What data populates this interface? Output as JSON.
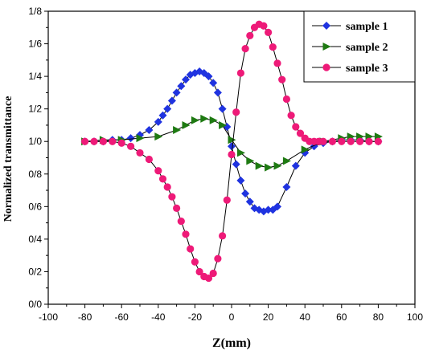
{
  "chart_data": {
    "type": "line",
    "xlabel": "Z(mm)",
    "ylabel": "Normalized transmittance",
    "xlim": [
      -100,
      100
    ],
    "ylim": [
      0,
      1.8
    ],
    "xticks": [
      -100,
      -80,
      -60,
      -40,
      -20,
      0,
      20,
      40,
      60,
      80,
      100
    ],
    "xtick_labels": [
      "-100",
      "-80",
      "-60",
      "-40",
      "-20",
      "0",
      "20",
      "40",
      "60",
      "80",
      "100"
    ],
    "yticks": [
      0,
      0.2,
      0.4,
      0.6,
      0.8,
      1.0,
      1.2,
      1.4,
      1.6,
      1.8
    ],
    "ytick_labels": [
      "0/0",
      "0/2",
      "0/4",
      "0/6",
      "0/8",
      "1/0",
      "1/2",
      "1/4",
      "1/6",
      "1/8"
    ],
    "grid": false,
    "legend_position": "top-right",
    "series": [
      {
        "name": "sample 1",
        "color": "#1f33e0",
        "marker": "diamond",
        "x": [
          -80,
          -75,
          -70,
          -65,
          -60,
          -55,
          -50,
          -45,
          -40,
          -37.5,
          -35,
          -32.5,
          -30,
          -27.5,
          -25,
          -22.5,
          -20,
          -17.5,
          -15,
          -12.5,
          -10,
          -7.5,
          -5,
          -2.5,
          0,
          2.5,
          5,
          7.5,
          10,
          12.5,
          15,
          17.5,
          20,
          22.5,
          25,
          30,
          35,
          40,
          45,
          50,
          55,
          60,
          65,
          70,
          75,
          80
        ],
        "values": [
          1.0,
          1.0,
          1.0,
          1.01,
          1.01,
          1.02,
          1.04,
          1.07,
          1.12,
          1.16,
          1.2,
          1.25,
          1.3,
          1.34,
          1.38,
          1.41,
          1.42,
          1.43,
          1.42,
          1.4,
          1.36,
          1.3,
          1.2,
          1.09,
          0.97,
          0.86,
          0.76,
          0.68,
          0.63,
          0.59,
          0.58,
          0.57,
          0.58,
          0.58,
          0.6,
          0.72,
          0.85,
          0.93,
          0.97,
          0.99,
          1.0,
          1.01,
          1.01,
          1.01,
          1.0,
          1.0
        ]
      },
      {
        "name": "sample 2",
        "color": "#1e7a12",
        "marker": "triangle-right",
        "x": [
          -80,
          -70,
          -60,
          -50,
          -40,
          -30,
          -25,
          -20,
          -15,
          -10,
          -5,
          0,
          5,
          10,
          15,
          20,
          25,
          30,
          40,
          50,
          60,
          65,
          70,
          75,
          80
        ],
        "values": [
          1.0,
          1.01,
          1.01,
          1.02,
          1.03,
          1.07,
          1.1,
          1.13,
          1.14,
          1.13,
          1.1,
          1.01,
          0.93,
          0.88,
          0.85,
          0.84,
          0.85,
          0.88,
          0.95,
          1.0,
          1.02,
          1.03,
          1.03,
          1.03,
          1.03
        ]
      },
      {
        "name": "sample 3",
        "color": "#ee1a78",
        "marker": "circle",
        "x": [
          -80,
          -75,
          -70,
          -65,
          -60,
          -55,
          -50,
          -45,
          -40,
          -37.5,
          -35,
          -32.5,
          -30,
          -27.5,
          -25,
          -22.5,
          -20,
          -17.5,
          -15,
          -12.5,
          -10,
          -7.5,
          -5,
          -2.5,
          0,
          2.5,
          5,
          7.5,
          10,
          12.5,
          15,
          17.5,
          20,
          22.5,
          25,
          27.5,
          30,
          32.5,
          35,
          37.5,
          40,
          42.5,
          45,
          47.5,
          50,
          55,
          60,
          65,
          70,
          75,
          80
        ],
        "values": [
          1.0,
          1.0,
          1.0,
          1.0,
          0.99,
          0.97,
          0.93,
          0.89,
          0.82,
          0.77,
          0.72,
          0.66,
          0.59,
          0.51,
          0.43,
          0.34,
          0.26,
          0.2,
          0.17,
          0.16,
          0.19,
          0.28,
          0.42,
          0.64,
          0.92,
          1.18,
          1.42,
          1.57,
          1.65,
          1.7,
          1.72,
          1.71,
          1.67,
          1.58,
          1.48,
          1.38,
          1.26,
          1.16,
          1.09,
          1.05,
          1.02,
          1.0,
          1.0,
          1.0,
          1.0,
          1.0,
          1.0,
          1.0,
          1.0,
          1.0,
          1.0
        ]
      }
    ]
  }
}
